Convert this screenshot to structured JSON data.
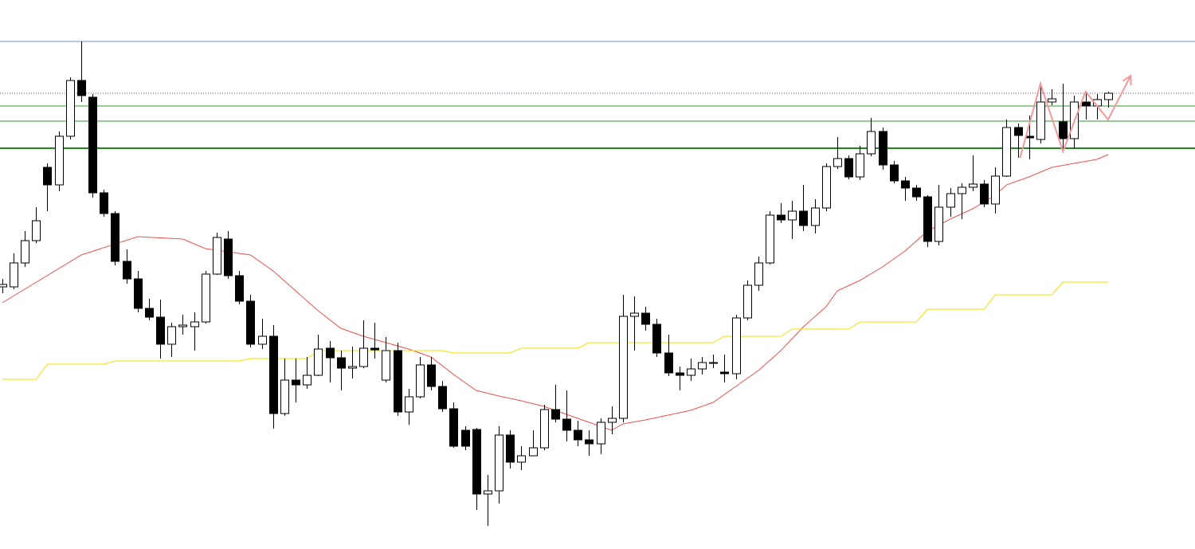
{
  "chart_data": {
    "type": "candlestick",
    "xlim": [
      -0.2,
      105.7
    ],
    "ylim": [
      0,
      689
    ],
    "up_color": "#ffffff",
    "down_color": "#000000",
    "edge_color": "#000000",
    "open": [
      329,
      329,
      359,
      387,
      479,
      457,
      518,
      588,
      567,
      447,
      421,
      361,
      339,
      302,
      291,
      257,
      279,
      279,
      285,
      345,
      389,
      343,
      311,
      257,
      267,
      170,
      212,
      206,
      218,
      252,
      240,
      227,
      229,
      252,
      212,
      249,
      172,
      191,
      231,
      204,
      176,
      149,
      150,
      69,
      73,
      143,
      109,
      117,
      127,
      175,
      163,
      149,
      137,
      132,
      159,
      164,
      292,
      296,
      282,
      246,
      221,
      218,
      226,
      233,
      222,
      220,
      290,
      331,
      359,
      419,
      413,
      424,
      406,
      428,
      480,
      490,
      467,
      496,
      524,
      482,
      462,
      453,
      442,
      386,
      429,
      446,
      454,
      458,
      433,
      468,
      529,
      518,
      514,
      561,
      536,
      515,
      561,
      556,
      564
    ],
    "high": [
      339,
      371,
      399,
      429,
      484,
      524,
      592,
      637,
      571,
      451,
      424,
      376,
      349,
      314,
      313,
      284,
      294,
      297,
      349,
      397,
      399,
      349,
      319,
      289,
      281,
      239,
      239,
      241,
      269,
      261,
      249,
      254,
      287,
      284,
      266,
      259,
      201,
      241,
      241,
      211,
      184,
      154,
      152,
      93,
      154,
      149,
      129,
      149,
      181,
      206,
      199,
      161,
      149,
      164,
      179,
      319,
      317,
      304,
      289,
      269,
      229,
      239,
      241,
      244,
      244,
      294,
      337,
      367,
      424,
      434,
      437,
      457,
      439,
      484,
      517,
      494,
      506,
      541,
      529,
      487,
      467,
      457,
      444,
      457,
      453,
      459,
      494,
      463,
      479,
      539,
      534,
      544,
      584,
      577,
      584,
      569,
      574,
      571,
      574
    ],
    "low": [
      321,
      326,
      354,
      384,
      424,
      449,
      514,
      561,
      441,
      417,
      356,
      333,
      297,
      287,
      239,
      241,
      269,
      249,
      283,
      344,
      339,
      307,
      253,
      251,
      151,
      167,
      184,
      201,
      217,
      209,
      199,
      214,
      227,
      239,
      209,
      167,
      156,
      189,
      199,
      172,
      127,
      124,
      49,
      29,
      57,
      101,
      99,
      117,
      124,
      159,
      135,
      129,
      117,
      119,
      144,
      159,
      249,
      274,
      241,
      217,
      199,
      211,
      219,
      227,
      209,
      213,
      287,
      324,
      357,
      409,
      389,
      399,
      396,
      424,
      477,
      464,
      463,
      493,
      476,
      459,
      437,
      437,
      379,
      381,
      417,
      414,
      449,
      429,
      421,
      467,
      491,
      489,
      509,
      557,
      499,
      502,
      539,
      539,
      554
    ],
    "close": [
      332,
      359,
      387,
      412,
      457,
      518,
      588,
      569,
      447,
      421,
      361,
      339,
      302,
      291,
      257,
      279,
      281,
      285,
      345,
      391,
      343,
      311,
      257,
      267,
      170,
      212,
      206,
      218,
      251,
      240,
      227,
      229,
      252,
      250,
      249,
      172,
      191,
      231,
      204,
      176,
      129,
      129,
      69,
      73,
      143,
      109,
      117,
      127,
      175,
      163,
      149,
      137,
      132,
      159,
      164,
      292,
      296,
      282,
      246,
      221,
      218,
      226,
      234,
      234,
      220,
      290,
      331,
      359,
      419,
      413,
      424,
      406,
      428,
      480,
      490,
      467,
      496,
      524,
      482,
      462,
      453,
      442,
      386,
      429,
      446,
      454,
      458,
      433,
      468,
      529,
      519,
      516,
      561,
      565,
      515,
      561,
      556,
      564,
      572
    ],
    "hlines": [
      {
        "value": 637,
        "color": "#6b8cf7",
        "style": "solid"
      },
      {
        "value": 572,
        "color": "#7b3fb0",
        "style": "dotted"
      },
      {
        "value": 556,
        "color": "#2e9a2e",
        "style": "solid"
      },
      {
        "value": 537,
        "color": "#2e9a2e",
        "style": "solid"
      },
      {
        "value": 503,
        "color": "#1f8a1f",
        "style": "thick"
      }
    ],
    "lines": [
      {
        "color": "#f05050",
        "style": "solid",
        "x": [
          0,
          7,
          12,
          16,
          18,
          22,
          24,
          26,
          28,
          30,
          32,
          34,
          36,
          38,
          40,
          42,
          44,
          46,
          48,
          50,
          52,
          54,
          55,
          57,
          59,
          61,
          63,
          65,
          67,
          69,
          71,
          73,
          74,
          76,
          78,
          80,
          82,
          84,
          86,
          88,
          89,
          91,
          93,
          95,
          97,
          98
        ],
        "values": [
          309,
          369,
          392,
          389,
          377,
          369,
          349,
          324,
          299,
          277,
          267,
          259,
          251,
          241,
          219,
          199,
          192,
          186,
          179,
          169,
          159,
          149,
          157,
          162,
          168,
          174,
          184,
          204,
          224,
          249,
          279,
          304,
          324,
          337,
          354,
          374,
          399,
          414,
          427,
          444,
          457,
          467,
          479,
          484,
          489,
          495
        ]
      },
      {
        "color": "#f5e000",
        "style": "solid",
        "x": [
          0,
          3,
          4,
          9,
          10,
          21,
          22,
          27,
          28,
          39,
          40,
          45,
          46,
          51,
          52,
          63,
          64,
          69,
          70,
          75,
          76,
          81,
          82,
          87,
          88,
          93,
          94,
          98
        ],
        "values": [
          213,
          213,
          232,
          232,
          236,
          236,
          239,
          239,
          249,
          249,
          246,
          246,
          252,
          252,
          259,
          259,
          267,
          267,
          276,
          276,
          285,
          285,
          301,
          301,
          319,
          319,
          335,
          335
        ]
      },
      {
        "color": "#f29a9a",
        "style": "arrow",
        "x": [
          90.2,
          92,
          94,
          96,
          98,
          100
        ],
        "values": [
          491,
          584,
          499,
          574,
          539,
          594
        ]
      }
    ]
  }
}
